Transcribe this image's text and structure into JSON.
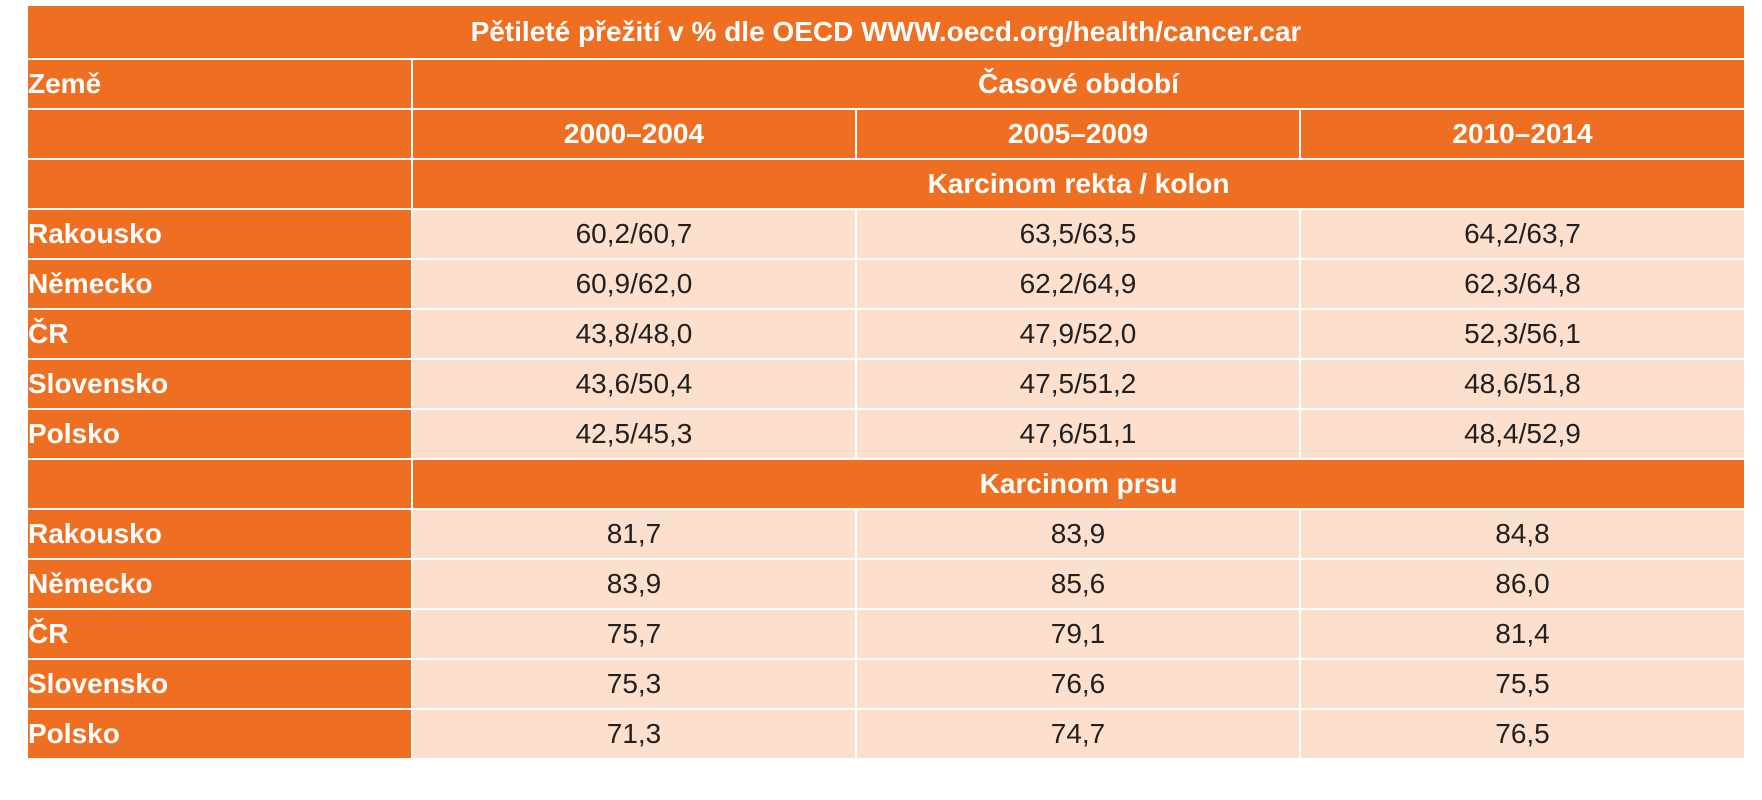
{
  "table": {
    "title": "Pětileté přežití v % dle OECD WWW.oecd.org/health/cancer.car",
    "country_header": "Země",
    "period_header": "Časové období",
    "periods": [
      "2000–2004",
      "2005–2009",
      "2010–2014"
    ],
    "sections": [
      {
        "name": "Karcinom rekta / kolon",
        "rows": [
          {
            "country": "Rakousko",
            "values": [
              "60,2/60,7",
              "63,5/63,5",
              "64,2/63,7"
            ]
          },
          {
            "country": "Německo",
            "values": [
              "60,9/62,0",
              "62,2/64,9",
              "62,3/64,8"
            ]
          },
          {
            "country": "ČR",
            "values": [
              "43,8/48,0",
              "47,9/52,0",
              "52,3/56,1"
            ]
          },
          {
            "country": "Slovensko",
            "values": [
              "43,6/50,4",
              "47,5/51,2",
              "48,6/51,8"
            ]
          },
          {
            "country": "Polsko",
            "values": [
              "42,5/45,3",
              "47,6/51,1",
              "48,4/52,9"
            ]
          }
        ]
      },
      {
        "name": "Karcinom prsu",
        "rows": [
          {
            "country": "Rakousko",
            "values": [
              "81,7",
              "83,9",
              "84,8"
            ]
          },
          {
            "country": "Německo",
            "values": [
              "83,9",
              "85,6",
              "86,0"
            ]
          },
          {
            "country": "ČR",
            "values": [
              "75,7",
              "79,1",
              "81,4"
            ]
          },
          {
            "country": "Slovensko",
            "values": [
              "75,3",
              "76,6",
              "75,5"
            ]
          },
          {
            "country": "Polsko",
            "values": [
              "71,3",
              "74,7",
              "76,5"
            ]
          }
        ]
      }
    ]
  },
  "colors": {
    "header_orange": "#ee6f22",
    "cell_peach": "#fce0cd",
    "header_text": "#ffffff",
    "cell_text": "#231f20"
  }
}
